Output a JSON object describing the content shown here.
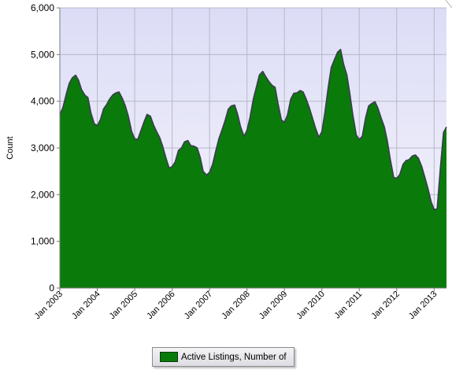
{
  "chart_data": {
    "type": "area",
    "title": "",
    "xlabel": "",
    "ylabel": "Count",
    "ylim": [
      0,
      6000
    ],
    "yticks": [
      0,
      1000,
      2000,
      3000,
      4000,
      5000,
      6000
    ],
    "ytick_labels": [
      "0",
      "1,000",
      "2,000",
      "3,000",
      "4,000",
      "5,000",
      "6,000"
    ],
    "xtick_labels": [
      "Jan 2003",
      "Jan 2004",
      "Jan 2005",
      "Jan 2006",
      "Jan 2007",
      "Jan 2008",
      "Jan 2009",
      "Jan 2010",
      "Jan 2011",
      "Jan 2012",
      "Jan 2013"
    ],
    "xrange": [
      2003.0,
      2013.33
    ],
    "grid": true,
    "legend_position": "bottom-center",
    "series": [
      {
        "name": "Active Listings, Number of",
        "color": "#0a7a0a",
        "points": [
          [
            2003.0,
            3720
          ],
          [
            2003.08,
            3860
          ],
          [
            2003.17,
            4150
          ],
          [
            2003.25,
            4380
          ],
          [
            2003.33,
            4500
          ],
          [
            2003.42,
            4560
          ],
          [
            2003.5,
            4450
          ],
          [
            2003.58,
            4250
          ],
          [
            2003.67,
            4130
          ],
          [
            2003.75,
            4080
          ],
          [
            2003.83,
            3750
          ],
          [
            2003.92,
            3520
          ],
          [
            2004.0,
            3480
          ],
          [
            2004.08,
            3600
          ],
          [
            2004.17,
            3840
          ],
          [
            2004.25,
            3930
          ],
          [
            2004.33,
            4050
          ],
          [
            2004.42,
            4140
          ],
          [
            2004.5,
            4180
          ],
          [
            2004.58,
            4200
          ],
          [
            2004.67,
            4060
          ],
          [
            2004.75,
            3900
          ],
          [
            2004.83,
            3680
          ],
          [
            2004.92,
            3350
          ],
          [
            2005.0,
            3200
          ],
          [
            2005.08,
            3180
          ],
          [
            2005.17,
            3380
          ],
          [
            2005.25,
            3560
          ],
          [
            2005.33,
            3720
          ],
          [
            2005.42,
            3680
          ],
          [
            2005.5,
            3500
          ],
          [
            2005.58,
            3360
          ],
          [
            2005.67,
            3220
          ],
          [
            2005.75,
            3030
          ],
          [
            2005.83,
            2800
          ],
          [
            2005.92,
            2570
          ],
          [
            2006.0,
            2600
          ],
          [
            2006.08,
            2700
          ],
          [
            2006.17,
            2950
          ],
          [
            2006.25,
            3000
          ],
          [
            2006.33,
            3130
          ],
          [
            2006.42,
            3160
          ],
          [
            2006.5,
            3050
          ],
          [
            2006.58,
            3040
          ],
          [
            2006.67,
            3000
          ],
          [
            2006.75,
            2800
          ],
          [
            2006.83,
            2500
          ],
          [
            2006.92,
            2420
          ],
          [
            2007.0,
            2480
          ],
          [
            2007.08,
            2650
          ],
          [
            2007.17,
            2950
          ],
          [
            2007.25,
            3200
          ],
          [
            2007.33,
            3380
          ],
          [
            2007.42,
            3600
          ],
          [
            2007.5,
            3830
          ],
          [
            2007.58,
            3900
          ],
          [
            2007.67,
            3920
          ],
          [
            2007.75,
            3720
          ],
          [
            2007.83,
            3450
          ],
          [
            2007.92,
            3250
          ],
          [
            2008.0,
            3380
          ],
          [
            2008.08,
            3650
          ],
          [
            2008.17,
            4050
          ],
          [
            2008.25,
            4300
          ],
          [
            2008.33,
            4560
          ],
          [
            2008.42,
            4640
          ],
          [
            2008.5,
            4530
          ],
          [
            2008.58,
            4430
          ],
          [
            2008.67,
            4340
          ],
          [
            2008.75,
            4300
          ],
          [
            2008.83,
            3950
          ],
          [
            2008.92,
            3600
          ],
          [
            2009.0,
            3550
          ],
          [
            2009.08,
            3700
          ],
          [
            2009.17,
            4050
          ],
          [
            2009.25,
            4170
          ],
          [
            2009.33,
            4180
          ],
          [
            2009.42,
            4230
          ],
          [
            2009.5,
            4200
          ],
          [
            2009.58,
            4050
          ],
          [
            2009.67,
            3850
          ],
          [
            2009.75,
            3640
          ],
          [
            2009.83,
            3430
          ],
          [
            2009.92,
            3230
          ],
          [
            2010.0,
            3350
          ],
          [
            2010.08,
            3750
          ],
          [
            2010.17,
            4300
          ],
          [
            2010.25,
            4720
          ],
          [
            2010.33,
            4880
          ],
          [
            2010.42,
            5050
          ],
          [
            2010.5,
            5110
          ],
          [
            2010.58,
            4800
          ],
          [
            2010.67,
            4560
          ],
          [
            2010.75,
            4150
          ],
          [
            2010.83,
            3700
          ],
          [
            2010.92,
            3280
          ],
          [
            2011.0,
            3180
          ],
          [
            2011.08,
            3250
          ],
          [
            2011.17,
            3650
          ],
          [
            2011.25,
            3900
          ],
          [
            2011.33,
            3950
          ],
          [
            2011.42,
            3990
          ],
          [
            2011.5,
            3850
          ],
          [
            2011.58,
            3650
          ],
          [
            2011.67,
            3450
          ],
          [
            2011.75,
            3150
          ],
          [
            2011.83,
            2750
          ],
          [
            2011.92,
            2370
          ],
          [
            2012.0,
            2350
          ],
          [
            2012.08,
            2430
          ],
          [
            2012.17,
            2650
          ],
          [
            2012.25,
            2730
          ],
          [
            2012.33,
            2750
          ],
          [
            2012.42,
            2830
          ],
          [
            2012.5,
            2850
          ],
          [
            2012.58,
            2780
          ],
          [
            2012.67,
            2600
          ],
          [
            2012.75,
            2380
          ],
          [
            2012.83,
            2150
          ],
          [
            2012.92,
            1850
          ],
          [
            2013.0,
            1680
          ],
          [
            2013.08,
            1700
          ],
          [
            2013.17,
            2600
          ],
          [
            2013.25,
            3330
          ],
          [
            2013.33,
            3450
          ]
        ]
      }
    ]
  }
}
